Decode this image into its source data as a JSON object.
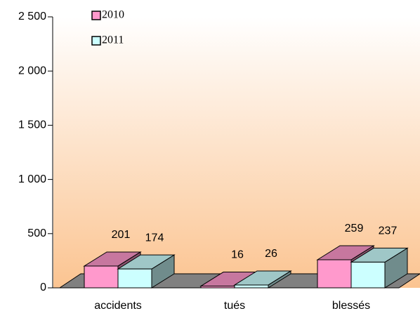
{
  "chart_data": {
    "type": "bar3d",
    "categories": [
      "accidents",
      "tués",
      "blessés"
    ],
    "series": [
      {
        "name": "2010",
        "color": "#ff99cc",
        "values": [
          201,
          16,
          259
        ]
      },
      {
        "name": "2011",
        "color": "#ccffff",
        "values": [
          174,
          26,
          237
        ]
      }
    ],
    "ylim": [
      0,
      2500
    ],
    "yticks": [
      0,
      500,
      {
        "value": 1000,
        "label": "1 000"
      },
      {
        "value": 1500,
        "label": "1 500"
      },
      {
        "value": 2000,
        "label": "2 000"
      },
      {
        "value": 2500,
        "label": "2 500"
      }
    ]
  }
}
